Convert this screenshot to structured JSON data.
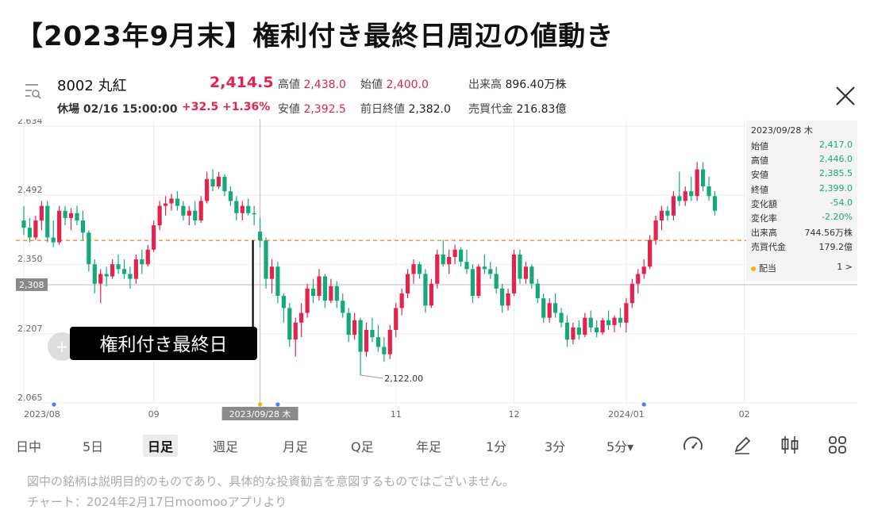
{
  "title": "【2023年9月末】権利付き最終日周辺の値動き",
  "header": {
    "code_name": "8002 丸紅",
    "price": "2,414.5",
    "status": "休場 02/16 15:00:00",
    "change": "+32.5",
    "change_pct": "+1.36%",
    "high_label": "高値",
    "high": "2,438.0",
    "open_label": "始値",
    "open": "2,400.0",
    "volume_label": "出来高",
    "volume": "896.40万株",
    "low_label": "安値",
    "low": "2,392.5",
    "prev_close_label": "前日終値",
    "prev_close": "2,382.0",
    "turnover_label": "売買代金",
    "turnover": "216.83億"
  },
  "info_panel": {
    "date": "2023/09/28 木",
    "rows": [
      {
        "label": "始値",
        "value": "2,417.0",
        "tone": "dn"
      },
      {
        "label": "高値",
        "value": "2,446.0",
        "tone": "dn"
      },
      {
        "label": "安値",
        "value": "2,385.5",
        "tone": "dn"
      },
      {
        "label": "終値",
        "value": "2,399.0",
        "tone": "dn"
      },
      {
        "label": "変化額",
        "value": "-54.0",
        "tone": "dn"
      },
      {
        "label": "変化率",
        "value": "-2.20%",
        "tone": "dn"
      },
      {
        "label": "出来高",
        "value": "744.56万株",
        "tone": "plain"
      },
      {
        "label": "売買代金",
        "value": "179.2億",
        "tone": "plain"
      }
    ],
    "dividend_label": "配当",
    "dividend_value": "1 >"
  },
  "chart_data": {
    "type": "candlestick",
    "y_ticks": [
      "2,634",
      "2,492",
      "2,350",
      "2,207",
      "2,065"
    ],
    "x_ticks": [
      {
        "label": "2023/08",
        "index": 0
      },
      {
        "label": "09",
        "index": 22
      },
      {
        "label": "11",
        "index": 63
      },
      {
        "label": "12",
        "index": 83
      },
      {
        "label": "2024/01",
        "index": 102
      },
      {
        "label": "02",
        "index": 122
      }
    ],
    "ylim": [
      2065,
      2634
    ],
    "crosshair_date": "2023/09/28 木",
    "crosshair_index": 40,
    "reference_price_label": "2,308",
    "reference_price": 2308,
    "dashed_line_price": 2399,
    "annotation": "権利付き最終日",
    "low_marker_label": "2,122.00",
    "low_marker_index": 57,
    "low_marker_price": 2122,
    "colors": {
      "up": "#e2234d",
      "down": "#16a878",
      "dashed": "#f07a2a",
      "grid": "#eeeeee"
    },
    "ohlc": [
      [
        2440,
        2470,
        2410,
        2425
      ],
      [
        2425,
        2445,
        2395,
        2405
      ],
      [
        2405,
        2450,
        2400,
        2440
      ],
      [
        2440,
        2480,
        2420,
        2470
      ],
      [
        2470,
        2480,
        2395,
        2405
      ],
      [
        2405,
        2440,
        2385,
        2395
      ],
      [
        2395,
        2470,
        2390,
        2460
      ],
      [
        2460,
        2470,
        2430,
        2445
      ],
      [
        2445,
        2465,
        2420,
        2455
      ],
      [
        2455,
        2470,
        2430,
        2440
      ],
      [
        2440,
        2460,
        2400,
        2415
      ],
      [
        2415,
        2420,
        2335,
        2350
      ],
      [
        2350,
        2360,
        2290,
        2310
      ],
      [
        2310,
        2340,
        2270,
        2330
      ],
      [
        2330,
        2345,
        2305,
        2325
      ],
      [
        2325,
        2360,
        2320,
        2350
      ],
      [
        2350,
        2370,
        2330,
        2340
      ],
      [
        2340,
        2360,
        2320,
        2330
      ],
      [
        2330,
        2345,
        2300,
        2320
      ],
      [
        2320,
        2370,
        2310,
        2360
      ],
      [
        2360,
        2380,
        2330,
        2350
      ],
      [
        2350,
        2390,
        2345,
        2380
      ],
      [
        2380,
        2440,
        2375,
        2430
      ],
      [
        2430,
        2480,
        2420,
        2470
      ],
      [
        2470,
        2490,
        2450,
        2475
      ],
      [
        2475,
        2495,
        2460,
        2485
      ],
      [
        2485,
        2500,
        2460,
        2470
      ],
      [
        2470,
        2480,
        2440,
        2450
      ],
      [
        2450,
        2470,
        2430,
        2460
      ],
      [
        2460,
        2480,
        2430,
        2440
      ],
      [
        2440,
        2490,
        2435,
        2480
      ],
      [
        2480,
        2540,
        2475,
        2525
      ],
      [
        2525,
        2545,
        2500,
        2510
      ],
      [
        2510,
        2540,
        2505,
        2530
      ],
      [
        2530,
        2535,
        2490,
        2500
      ],
      [
        2500,
        2510,
        2470,
        2480
      ],
      [
        2480,
        2490,
        2440,
        2455
      ],
      [
        2455,
        2480,
        2440,
        2470
      ],
      [
        2470,
        2485,
        2450,
        2455
      ],
      [
        2455,
        2470,
        2430,
        2453
      ],
      [
        2417,
        2446,
        2385,
        2399
      ],
      [
        2399,
        2405,
        2300,
        2320
      ],
      [
        2320,
        2360,
        2290,
        2345
      ],
      [
        2345,
        2355,
        2270,
        2285
      ],
      [
        2285,
        2290,
        2230,
        2260
      ],
      [
        2260,
        2270,
        2180,
        2195
      ],
      [
        2195,
        2240,
        2160,
        2230
      ],
      [
        2230,
        2270,
        2200,
        2250
      ],
      [
        2250,
        2310,
        2240,
        2300
      ],
      [
        2300,
        2320,
        2270,
        2285
      ],
      [
        2285,
        2340,
        2275,
        2325
      ],
      [
        2325,
        2330,
        2260,
        2275
      ],
      [
        2275,
        2320,
        2270,
        2305
      ],
      [
        2305,
        2315,
        2260,
        2275
      ],
      [
        2275,
        2290,
        2240,
        2250
      ],
      [
        2250,
        2260,
        2190,
        2205
      ],
      [
        2205,
        2250,
        2195,
        2235
      ],
      [
        2235,
        2240,
        2122,
        2170
      ],
      [
        2170,
        2230,
        2160,
        2215
      ],
      [
        2215,
        2240,
        2190,
        2200
      ],
      [
        2200,
        2225,
        2170,
        2180
      ],
      [
        2180,
        2200,
        2150,
        2165
      ],
      [
        2165,
        2225,
        2155,
        2215
      ],
      [
        2215,
        2270,
        2200,
        2260
      ],
      [
        2260,
        2300,
        2245,
        2290
      ],
      [
        2290,
        2340,
        2280,
        2330
      ],
      [
        2330,
        2360,
        2310,
        2350
      ],
      [
        2350,
        2355,
        2320,
        2330
      ],
      [
        2330,
        2340,
        2250,
        2265
      ],
      [
        2265,
        2320,
        2260,
        2310
      ],
      [
        2310,
        2380,
        2300,
        2370
      ],
      [
        2370,
        2400,
        2345,
        2350
      ],
      [
        2350,
        2380,
        2330,
        2365
      ],
      [
        2365,
        2390,
        2350,
        2380
      ],
      [
        2380,
        2385,
        2345,
        2355
      ],
      [
        2355,
        2380,
        2330,
        2340
      ],
      [
        2340,
        2350,
        2270,
        2285
      ],
      [
        2285,
        2350,
        2280,
        2345
      ],
      [
        2345,
        2370,
        2330,
        2340
      ],
      [
        2340,
        2355,
        2320,
        2330
      ],
      [
        2330,
        2345,
        2290,
        2300
      ],
      [
        2300,
        2310,
        2250,
        2265
      ],
      [
        2265,
        2300,
        2255,
        2290
      ],
      [
        2290,
        2380,
        2285,
        2370
      ],
      [
        2370,
        2380,
        2310,
        2320
      ],
      [
        2320,
        2355,
        2310,
        2345
      ],
      [
        2345,
        2350,
        2300,
        2310
      ],
      [
        2310,
        2320,
        2270,
        2280
      ],
      [
        2280,
        2290,
        2230,
        2240
      ],
      [
        2240,
        2280,
        2230,
        2270
      ],
      [
        2270,
        2290,
        2240,
        2250
      ],
      [
        2250,
        2260,
        2220,
        2230
      ],
      [
        2230,
        2245,
        2180,
        2195
      ],
      [
        2195,
        2230,
        2185,
        2220
      ],
      [
        2220,
        2235,
        2195,
        2205
      ],
      [
        2205,
        2250,
        2200,
        2240
      ],
      [
        2240,
        2255,
        2210,
        2220
      ],
      [
        2220,
        2235,
        2200,
        2210
      ],
      [
        2210,
        2240,
        2205,
        2235
      ],
      [
        2235,
        2255,
        2215,
        2225
      ],
      [
        2225,
        2245,
        2210,
        2240
      ],
      [
        2240,
        2260,
        2220,
        2230
      ],
      [
        2230,
        2280,
        2210,
        2270
      ],
      [
        2270,
        2320,
        2260,
        2310
      ],
      [
        2310,
        2340,
        2290,
        2330
      ],
      [
        2330,
        2360,
        2320,
        2345
      ],
      [
        2345,
        2410,
        2340,
        2400
      ],
      [
        2400,
        2450,
        2390,
        2440
      ],
      [
        2440,
        2470,
        2420,
        2460
      ],
      [
        2460,
        2470,
        2440,
        2450
      ],
      [
        2450,
        2500,
        2440,
        2490
      ],
      [
        2490,
        2540,
        2470,
        2480
      ],
      [
        2480,
        2510,
        2470,
        2500
      ],
      [
        2500,
        2530,
        2480,
        2490
      ],
      [
        2490,
        2560,
        2480,
        2545
      ],
      [
        2545,
        2560,
        2500,
        2510
      ],
      [
        2510,
        2530,
        2480,
        2490
      ],
      [
        2490,
        2500,
        2450,
        2460
      ]
    ],
    "dots": [
      0,
      43,
      105
    ]
  },
  "tabs": [
    "日中",
    "5日",
    "日足",
    "週足",
    "月足",
    "Q足",
    "年足",
    "1分",
    "3分",
    "5分▾"
  ],
  "active_tab": "日足",
  "footnote1": "図中の銘柄は説明目的のものであり、具体的な投資勧言を意図するものではございません。",
  "footnote2": "チャート：2024年2月17日moomooアプリより"
}
